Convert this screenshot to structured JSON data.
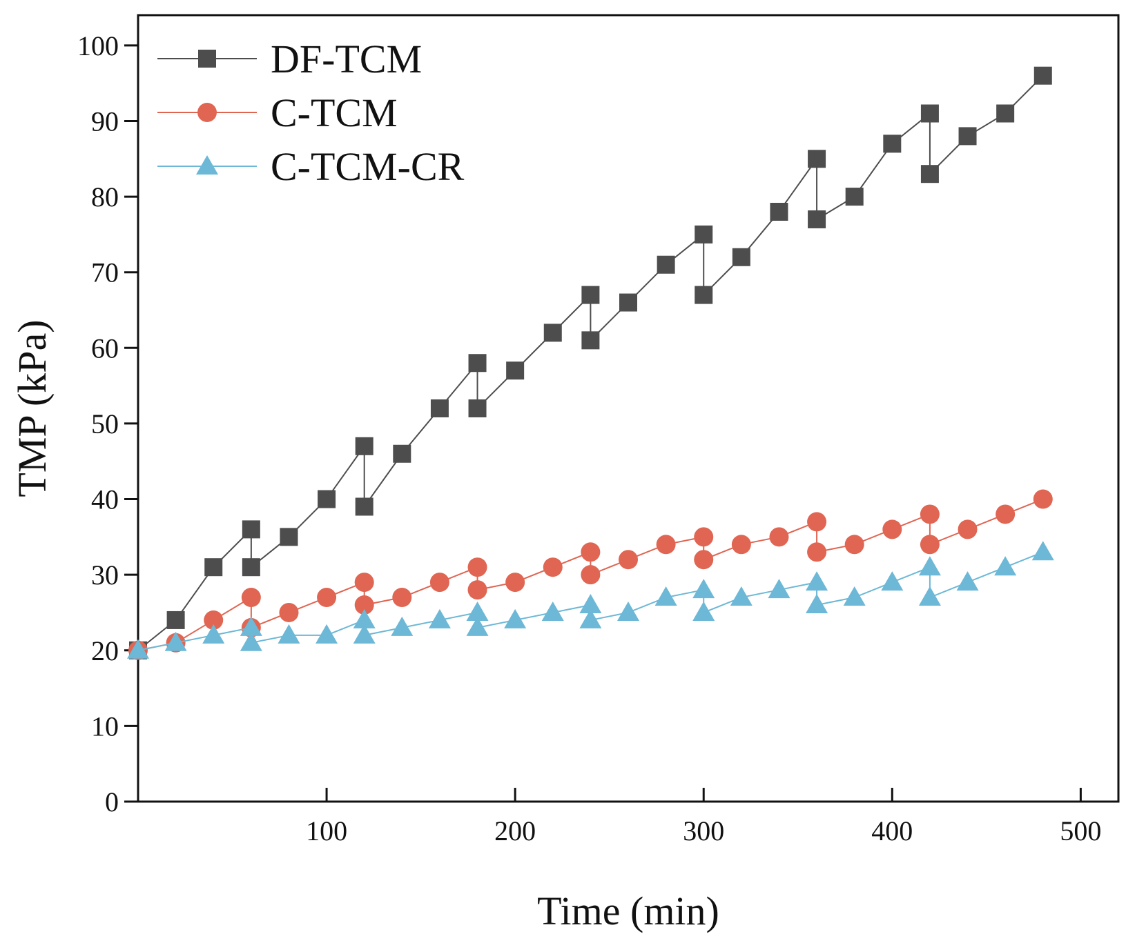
{
  "chart_data": {
    "type": "line",
    "title": "",
    "xlabel": "Time (min)",
    "ylabel": "TMP (kPa)",
    "xlim": [
      0,
      520
    ],
    "ylim": [
      0,
      104
    ],
    "x_ticks": [
      100,
      200,
      300,
      400,
      500
    ],
    "y_ticks": [
      0,
      10,
      20,
      30,
      40,
      50,
      60,
      70,
      80,
      90,
      100
    ],
    "grid": false,
    "legend_position": "top-left",
    "series": [
      {
        "name": "DF-TCM",
        "color": "#4d4d4d",
        "marker": "square",
        "x": [
          0,
          20,
          40,
          60,
          60,
          80,
          100,
          120,
          120,
          140,
          160,
          180,
          180,
          200,
          220,
          240,
          240,
          260,
          280,
          300,
          300,
          320,
          340,
          360,
          360,
          380,
          400,
          420,
          420,
          440,
          460,
          480
        ],
        "y": [
          20,
          24,
          31,
          36,
          31,
          35,
          40,
          47,
          39,
          46,
          52,
          58,
          52,
          57,
          62,
          67,
          61,
          66,
          71,
          75,
          67,
          72,
          78,
          85,
          77,
          80,
          87,
          91,
          83,
          88,
          91,
          96
        ]
      },
      {
        "name": "C-TCM",
        "color": "#e06552",
        "marker": "circle",
        "x": [
          0,
          20,
          40,
          60,
          60,
          80,
          100,
          120,
          120,
          140,
          160,
          180,
          180,
          200,
          220,
          240,
          240,
          260,
          280,
          300,
          300,
          320,
          340,
          360,
          360,
          380,
          400,
          420,
          420,
          440,
          460,
          480
        ],
        "y": [
          20,
          21,
          24,
          27,
          23,
          25,
          27,
          29,
          26,
          27,
          29,
          31,
          28,
          29,
          31,
          33,
          30,
          32,
          34,
          35,
          32,
          34,
          35,
          37,
          33,
          34,
          36,
          38,
          34,
          36,
          38,
          40
        ]
      },
      {
        "name": "C-TCM-CR",
        "color": "#6cb8d6",
        "marker": "triangle",
        "x": [
          0,
          20,
          40,
          60,
          60,
          80,
          100,
          120,
          120,
          140,
          160,
          180,
          180,
          200,
          220,
          240,
          240,
          260,
          280,
          300,
          300,
          320,
          340,
          360,
          360,
          380,
          400,
          420,
          420,
          440,
          460,
          480
        ],
        "y": [
          20,
          21,
          22,
          23,
          21,
          22,
          22,
          24,
          22,
          23,
          24,
          25,
          23,
          24,
          25,
          26,
          24,
          25,
          27,
          28,
          25,
          27,
          28,
          29,
          26,
          27,
          29,
          31,
          27,
          29,
          31,
          33
        ]
      }
    ]
  }
}
